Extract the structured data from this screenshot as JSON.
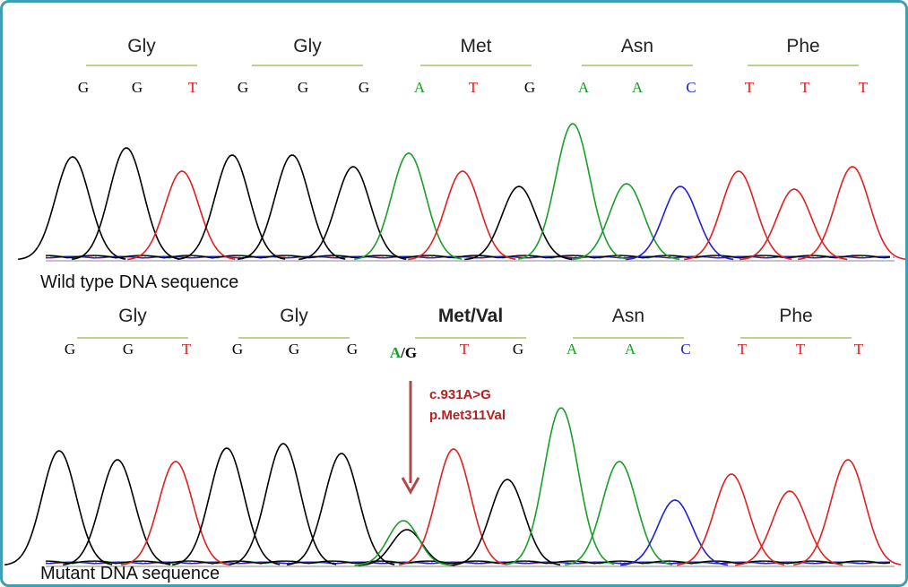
{
  "panels": [
    {
      "codons": [
        "Gly",
        "Gly",
        "Met",
        "Asn",
        "Phe"
      ],
      "bases": [
        "G",
        "G",
        "T",
        "G",
        "G",
        "G",
        "A",
        "T",
        "G",
        "A",
        "A",
        "C",
        "T",
        "T",
        "T"
      ],
      "caption": "Wild type DNA sequence"
    },
    {
      "codons": [
        "Gly",
        "Gly",
        "Met/Val",
        "Asn",
        "Phe"
      ],
      "bases": [
        "G",
        "G",
        "T",
        "G",
        "G",
        "G",
        [
          "A",
          "/G"
        ],
        "T",
        "G",
        "A",
        "A",
        "C",
        "T",
        "T",
        "T"
      ],
      "caption": "Mutant DNA sequence"
    }
  ],
  "annotation": {
    "lines": [
      "c.931A>G",
      "p.Met311Val"
    ]
  }
}
